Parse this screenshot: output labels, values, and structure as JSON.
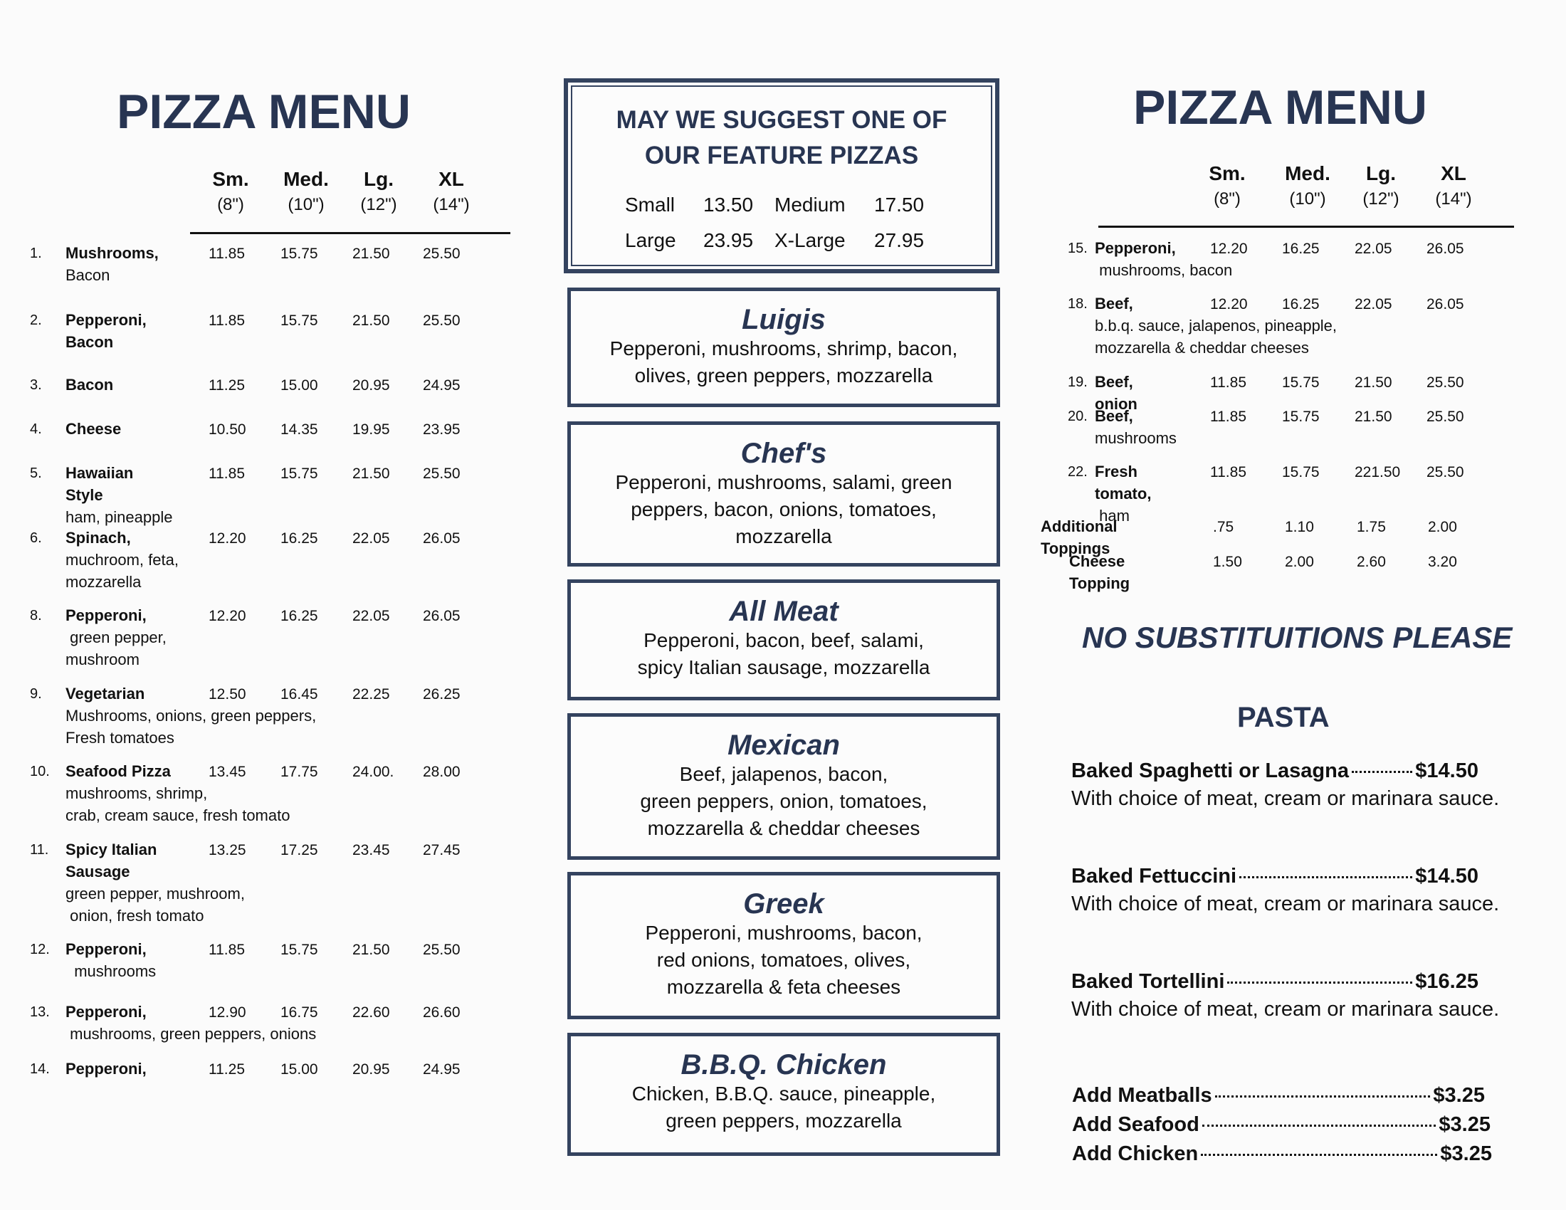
{
  "left": {
    "title": "PIZZA MENU",
    "headers": [
      {
        "label": "Sm.",
        "size": "(8\")"
      },
      {
        "label": "Med.",
        "size": "(10\")"
      },
      {
        "label": "Lg.",
        "size": "(12\")"
      },
      {
        "label": "XL",
        "size": "(14\")"
      }
    ],
    "items": [
      {
        "num": "1.",
        "name": "Mushrooms,",
        "desc": "Bacon",
        "prices": [
          "11.85",
          "15.75",
          "21.50",
          "25.50"
        ]
      },
      {
        "num": "2.",
        "name": "Pepperoni,\nBacon",
        "desc": "",
        "prices": [
          "11.85",
          "15.75",
          "21.50",
          "25.50"
        ]
      },
      {
        "num": "3.",
        "name": "Bacon",
        "desc": "",
        "prices": [
          "11.25",
          "15.00",
          "20.95",
          "24.95"
        ]
      },
      {
        "num": "4.",
        "name": "Cheese",
        "desc": "",
        "prices": [
          "10.50",
          "14.35",
          "19.95",
          "23.95"
        ]
      },
      {
        "num": "5.",
        "name": "Hawaiian Style",
        "desc": "ham, pineapple",
        "prices": [
          "11.85",
          "15.75",
          "21.50",
          "25.50"
        ]
      },
      {
        "num": "6.",
        "name": "Spinach,",
        "desc": "muchroom, feta,\nmozzarella",
        "prices": [
          "12.20",
          "16.25",
          "22.05",
          "26.05"
        ]
      },
      {
        "num": "8.",
        "name": "Pepperoni,",
        "desc": " green pepper,\nmushroom",
        "prices": [
          "12.20",
          "16.25",
          "22.05",
          "26.05"
        ]
      },
      {
        "num": "9.",
        "name": "Vegetarian",
        "desc": "Mushrooms, onions, green peppers,\nFresh tomatoes",
        "prices": [
          "12.50",
          "16.45",
          "22.25",
          "26.25"
        ]
      },
      {
        "num": "10.",
        "name": "Seafood Pizza",
        "desc": "mushrooms, shrimp,\ncrab, cream sauce, fresh tomato",
        "prices": [
          "13.45",
          "17.75",
          "24.00.",
          "28.00"
        ]
      },
      {
        "num": "11.",
        "name": "Spicy Italian\nSausage",
        "desc": "green pepper, mushroom,\n onion, fresh tomato",
        "prices": [
          "13.25",
          "17.25",
          "23.45",
          "27.45"
        ]
      },
      {
        "num": "12.",
        "name": "Pepperoni,",
        "desc": "  mushrooms",
        "prices": [
          "11.85",
          "15.75",
          "21.50",
          "25.50"
        ]
      },
      {
        "num": "13.",
        "name": "Pepperoni,",
        "desc": " mushrooms, green peppers, onions",
        "prices": [
          "12.90",
          "16.75",
          "22.60",
          "26.60"
        ]
      },
      {
        "num": "14.",
        "name": "Pepperoni,",
        "desc": "",
        "prices": [
          "11.25",
          "15.00",
          "20.95",
          "24.95"
        ]
      }
    ]
  },
  "middle": {
    "suggest": {
      "title": "MAY WE SUGGEST ONE OF\nOUR FEATURE PIZZAS",
      "prices": [
        {
          "label": "Small",
          "price": "13.50"
        },
        {
          "label": "Medium",
          "price": "17.50"
        },
        {
          "label": "Large",
          "price": "23.95"
        },
        {
          "label": "X-Large",
          "price": "27.95"
        }
      ]
    },
    "features": [
      {
        "name": "Luigis",
        "desc": "Pepperoni, mushrooms, shrimp, bacon,\nolives, green peppers, mozzarella"
      },
      {
        "name": "Chef's",
        "desc": "Pepperoni, mushrooms, salami, green\npeppers, bacon, onions, tomatoes,\nmozzarella"
      },
      {
        "name": "All Meat",
        "desc": "Pepperoni, bacon, beef, salami,\nspicy Italian sausage, mozzarella"
      },
      {
        "name": "Mexican",
        "desc": "Beef, jalapenos, bacon,\ngreen peppers, onion, tomatoes,\nmozzarella & cheddar cheeses"
      },
      {
        "name": "Greek",
        "desc": "Pepperoni, mushrooms, bacon,\nred onions, tomatoes, olives,\nmozzarella & feta cheeses"
      },
      {
        "name": "B.B.Q. Chicken",
        "desc": "Chicken, B.B.Q. sauce, pineapple,\ngreen peppers, mozzarella"
      }
    ]
  },
  "right": {
    "title": "PIZZA MENU",
    "headers": [
      {
        "label": "Sm.",
        "size": "(8\")"
      },
      {
        "label": "Med.",
        "size": "(10\")"
      },
      {
        "label": "Lg.",
        "size": "(12\")"
      },
      {
        "label": "XL",
        "size": "(14\")"
      }
    ],
    "items": [
      {
        "num": "15.",
        "name": "Pepperoni,",
        "desc": " mushrooms, bacon",
        "prices": [
          "12.20",
          "16.25",
          "22.05",
          "26.05"
        ]
      },
      {
        "num": "18.",
        "name": "Beef,",
        "desc": "b.b.q. sauce, jalapenos, pineapple,\nmozzarella & cheddar cheeses",
        "prices": [
          "12.20",
          "16.25",
          "22.05",
          "26.05"
        ]
      },
      {
        "num": "19.",
        "name": "Beef, onion",
        "desc": "",
        "prices": [
          "11.85",
          "15.75",
          "21.50",
          "25.50"
        ]
      },
      {
        "num": "20.",
        "name": "Beef,",
        "desc": "mushrooms",
        "prices": [
          "11.85",
          "15.75",
          "21.50",
          "25.50"
        ]
      },
      {
        "num": "22.",
        "name": "Fresh tomato,",
        "desc": " ham",
        "prices": [
          "11.85",
          "15.75",
          "221.50",
          "25.50"
        ]
      }
    ],
    "extras": [
      {
        "name": "Additional Toppings",
        "prices": [
          ".75",
          "1.10",
          "1.75",
          "2.00"
        ]
      },
      {
        "name": "Cheese Topping",
        "prices": [
          "1.50",
          "2.00",
          "2.60",
          "3.20"
        ]
      }
    ],
    "notice": "NO SUBSTITUITIONS PLEASE",
    "pasta": {
      "heading": "PASTA",
      "items": [
        {
          "name": "Baked Spaghetti or Lasagna",
          "price": "$14.50",
          "desc": "With choice of meat, cream or marinara sauce."
        },
        {
          "name": "Baked Fettuccini",
          "price": "$14.50",
          "desc": "With choice of meat, cream or marinara sauce."
        },
        {
          "name": "Baked Tortellini",
          "price": "$16.25",
          "desc": "With choice of meat, cream or marinara sauce."
        }
      ],
      "addons": [
        {
          "name": "Add Meatballs",
          "price": "$3.25"
        },
        {
          "name": "Add Seafood",
          "price": "$3.25"
        },
        {
          "name": "Add Chicken",
          "price": "$3.25"
        }
      ]
    }
  },
  "colors": {
    "heading": "#283552",
    "box_border": "#34435f",
    "paper": "#fbfbfb"
  }
}
